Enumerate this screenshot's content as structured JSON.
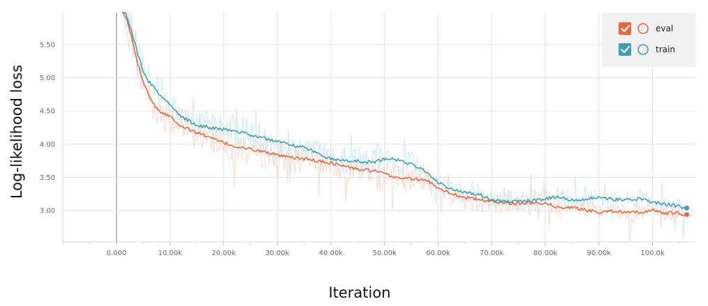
{
  "chart_data": {
    "type": "line",
    "xlabel": "Iteration",
    "ylabel": "Log-likelihood loss",
    "xlim": [
      -10000,
      108000
    ],
    "ylim": [
      2.53,
      5.98
    ],
    "x_ticks": [
      0,
      10000,
      20000,
      30000,
      40000,
      50000,
      60000,
      70000,
      80000,
      90000,
      100000
    ],
    "x_tick_labels": [
      "0.000",
      "10.00k",
      "20.00k",
      "30.00k",
      "40.00k",
      "50.00k",
      "60.00k",
      "70.00k",
      "80.00k",
      "90.00k",
      "100.0k"
    ],
    "y_ticks": [
      3.0,
      3.5,
      4.0,
      4.5,
      5.0,
      5.5
    ],
    "y_tick_labels": [
      "3.00",
      "3.50",
      "4.00",
      "4.50",
      "5.00",
      "5.50"
    ],
    "grid": true,
    "legend_position": "top-right",
    "series": [
      {
        "name": "eval",
        "color": "#e8683a",
        "raw_color": "#f8d5c6",
        "x": [
          1000,
          2000,
          3000,
          4000,
          5000,
          6000,
          7000,
          8000,
          10000,
          12000,
          14000,
          16000,
          18000,
          20000,
          22000,
          25000,
          28000,
          30000,
          32000,
          35000,
          38000,
          40000,
          42000,
          45000,
          48000,
          50000,
          52000,
          55000,
          58000,
          60000,
          62000,
          65000,
          68000,
          70000,
          72000,
          75000,
          78000,
          80000,
          82000,
          85000,
          88000,
          90000,
          92000,
          95000,
          98000,
          100000,
          102000,
          104000,
          106000
        ],
        "y": [
          6.05,
          5.85,
          5.55,
          5.2,
          4.95,
          4.75,
          4.6,
          4.5,
          4.42,
          4.28,
          4.2,
          4.15,
          4.08,
          4.02,
          3.97,
          3.92,
          3.88,
          3.83,
          3.8,
          3.78,
          3.74,
          3.72,
          3.68,
          3.62,
          3.6,
          3.55,
          3.5,
          3.48,
          3.45,
          3.35,
          3.27,
          3.2,
          3.16,
          3.14,
          3.12,
          3.11,
          3.12,
          3.12,
          3.05,
          3.05,
          3.0,
          2.98,
          3.0,
          2.97,
          2.97,
          3.02,
          2.95,
          2.97,
          2.94
        ]
      },
      {
        "name": "train",
        "color": "#3e9eb4",
        "raw_color": "#c9e8f1",
        "x": [
          1000,
          2000,
          3000,
          4000,
          5000,
          6000,
          7000,
          8000,
          10000,
          12000,
          14000,
          16000,
          18000,
          20000,
          22000,
          25000,
          28000,
          30000,
          32000,
          35000,
          38000,
          40000,
          42000,
          45000,
          48000,
          50000,
          52000,
          55000,
          58000,
          60000,
          62000,
          65000,
          68000,
          70000,
          72000,
          75000,
          78000,
          80000,
          82000,
          85000,
          88000,
          90000,
          92000,
          95000,
          98000,
          100000,
          102000,
          104000,
          106000
        ],
        "y": [
          6.1,
          5.9,
          5.65,
          5.35,
          5.1,
          4.95,
          4.85,
          4.75,
          4.6,
          4.42,
          4.33,
          4.27,
          4.24,
          4.22,
          4.2,
          4.14,
          4.08,
          4.04,
          4.0,
          3.95,
          3.85,
          3.78,
          3.75,
          3.75,
          3.72,
          3.78,
          3.77,
          3.7,
          3.58,
          3.42,
          3.33,
          3.28,
          3.24,
          3.16,
          3.14,
          3.14,
          3.15,
          3.18,
          3.2,
          3.16,
          3.18,
          3.2,
          3.17,
          3.16,
          3.18,
          3.12,
          3.1,
          3.08,
          3.04
        ]
      }
    ]
  }
}
